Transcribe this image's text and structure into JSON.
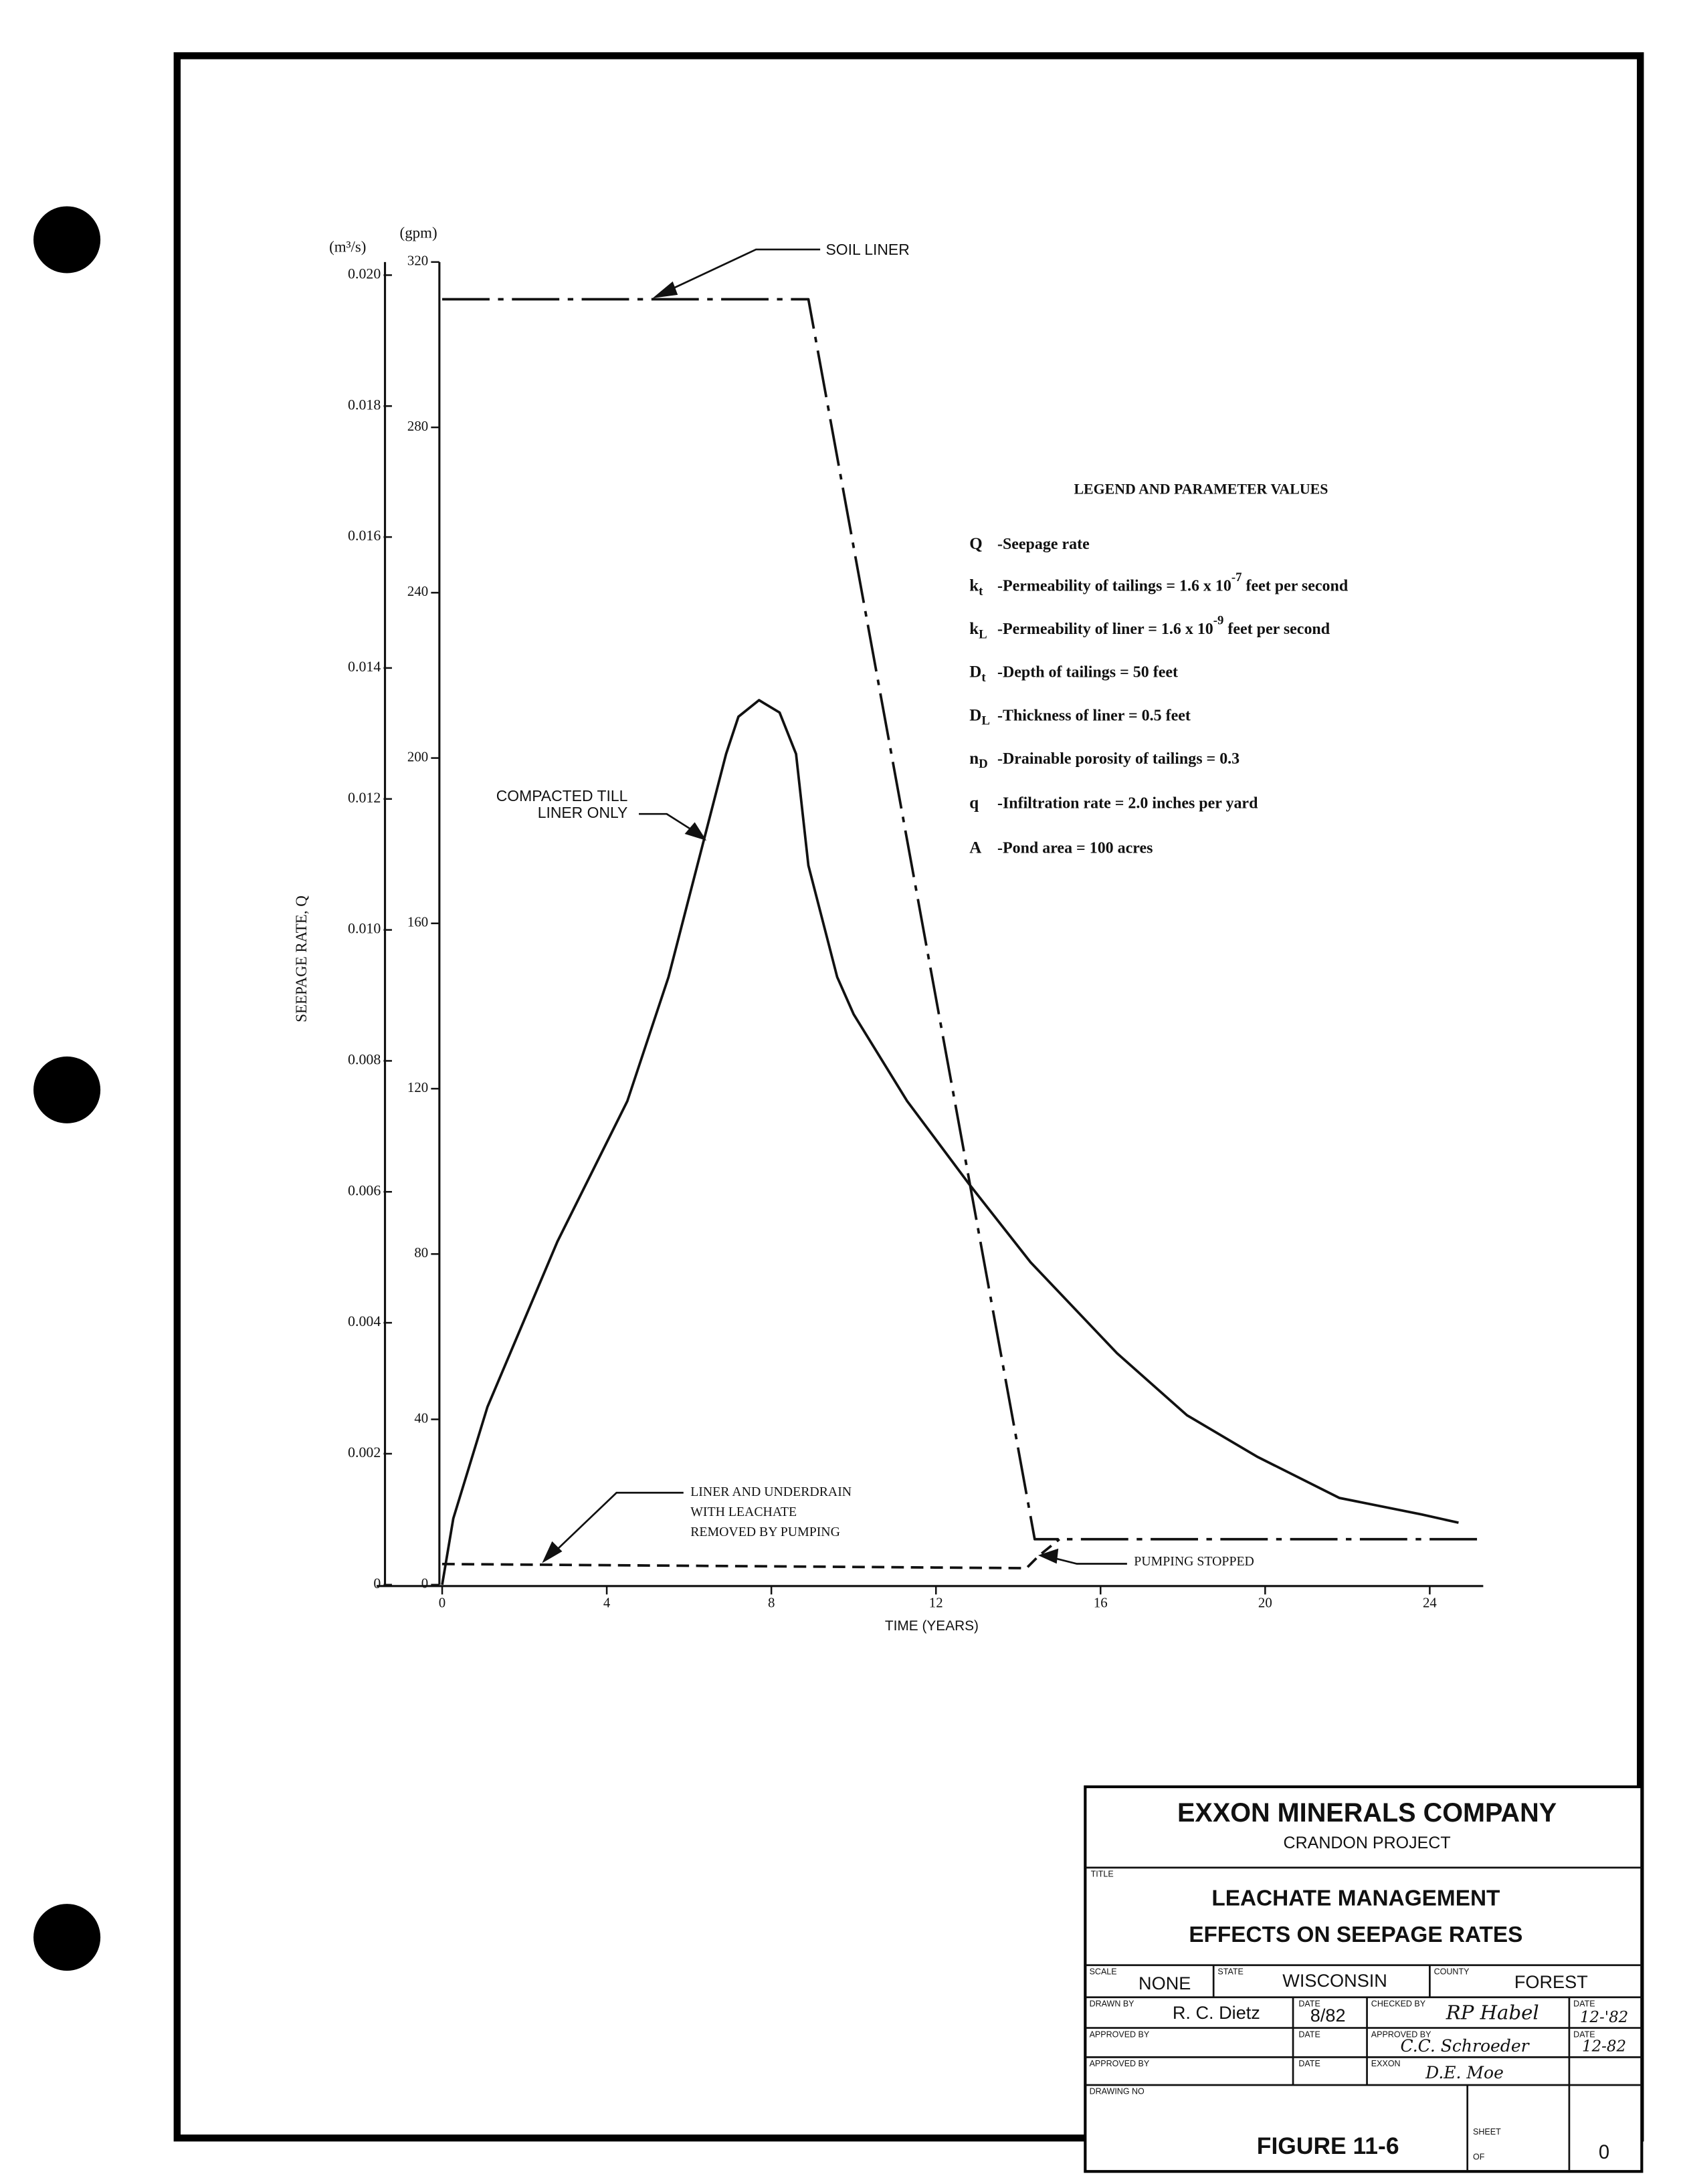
{
  "chart_data": {
    "type": "line",
    "x_label": "TIME (YEARS)",
    "y_label": "SEEPAGE RATE, Q",
    "y_unit": "(gpm)",
    "y2_unit": "(m³/s)",
    "xlim": [
      0,
      25.3
    ],
    "xticks": [
      0,
      4,
      8,
      12,
      16,
      20,
      24
    ],
    "ylim": [
      0,
      320
    ],
    "yticks": [
      0,
      40,
      80,
      120,
      160,
      200,
      240,
      280,
      320
    ],
    "y2lim": [
      0,
      0.0202
    ],
    "y2ticks": [
      0,
      {
        "value": 0.002,
        "label": "0.002"
      },
      {
        "value": 0.004,
        "label": "0.004"
      },
      {
        "value": 0.006,
        "label": "0.006"
      },
      {
        "value": 0.008,
        "label": "0.008"
      },
      {
        "value": 0.01,
        "label": "0.010"
      },
      {
        "value": 0.012,
        "label": "0.012"
      },
      {
        "value": 0.014,
        "label": "0.014"
      },
      {
        "value": 0.016,
        "label": "0.016"
      },
      {
        "value": 0.018,
        "label": "0.018"
      },
      {
        "value": 0.02,
        "label": "0.020"
      }
    ],
    "grid": false,
    "series": [
      {
        "color": "#111111",
        "line_style": "dash-dot",
        "x": [
          0,
          8.9,
          14.4,
          25.3
        ],
        "values": [
          311,
          311,
          11,
          11
        ]
      },
      {
        "color": "#111111",
        "line_style": "solid",
        "x": [
          0,
          0.27,
          1.1,
          2.8,
          4.5,
          5.5,
          6.2,
          6.9,
          7.2,
          7.7,
          8.2,
          8.6,
          8.9,
          9.6,
          10,
          11.3,
          12.8,
          14.3,
          16.4,
          18.1,
          19.8,
          21.8,
          23.8,
          24.7
        ],
        "values": [
          0,
          16,
          43,
          83,
          117,
          147,
          174,
          201,
          210,
          214,
          211,
          201,
          174,
          147,
          138,
          117,
          97,
          78,
          56,
          41,
          31,
          21,
          17,
          15
        ]
      },
      {
        "color": "#111111",
        "line_style": "dashed",
        "x": [
          0,
          14.2,
          14.5,
          15.0
        ],
        "values": [
          5,
          4,
          7,
          11
        ]
      }
    ],
    "annotations": [
      {
        "lines": [
          "SOIL LINER"
        ]
      },
      {
        "lines": [
          "COMPACTED TILL",
          "LINER ONLY"
        ]
      },
      {
        "lines": [
          "LINER AND UNDERDRAIN",
          "WITH LEACHATE",
          "REMOVED BY PUMPING"
        ]
      },
      {
        "lines": [
          "PUMPING STOPPED"
        ]
      }
    ]
  },
  "parameter_legend": {
    "title": "LEGEND AND PARAMETER VALUES",
    "items": [
      {
        "symbol": "Q",
        "text": "-Seepage rate"
      },
      {
        "symbol": "k",
        "sub": "t",
        "text": "-Permeability of tailings = 1.6 x 10",
        "sup": "-7",
        "tail": " feet per second"
      },
      {
        "symbol": "k",
        "sub": "L",
        "text": "-Permeability of liner = 1.6 x 10",
        "sup": "-9",
        "tail": " feet per second"
      },
      {
        "symbol": "D",
        "sub": "t",
        "text": "-Depth of tailings = 50 feet"
      },
      {
        "symbol": "D",
        "sub": "L",
        "text": "-Thickness of liner = 0.5 feet"
      },
      {
        "symbol": "n",
        "sub": "D",
        "text": "-Drainable porosity of tailings = 0.3"
      },
      {
        "symbol": "q",
        "text": "-Infiltration rate = 2.0 inches per yard"
      },
      {
        "symbol": "A",
        "text": "-Pond area = 100 acres"
      }
    ]
  },
  "title_block": {
    "company": "EXXON MINERALS COMPANY",
    "project": "CRANDON PROJECT",
    "title_label": "TITLE",
    "title_lines": [
      "LEACHATE MANAGEMENT",
      "EFFECTS ON SEEPAGE RATES"
    ],
    "scale_label": "SCALE",
    "scale": "NONE",
    "state_label": "STATE",
    "state": "WISCONSIN",
    "county_label": "COUNTY",
    "county": "FOREST",
    "drawn_by_label": "DRAWN BY",
    "drawn_by": "R. C. Dietz",
    "date_label": "DATE",
    "drawn_date": "8/82",
    "checked_by_label": "CHECKED BY",
    "checked_by": "RP Habel",
    "checked_date": "12-'82",
    "approved_by_label": "APPROVED BY",
    "approved_by": "C.C. Schroeder",
    "approved_date": "12-82",
    "exxon_label": "EXXON",
    "exxon_signature": "D.E. Moe",
    "drawing_no_label": "DRAWING NO",
    "figure": "FIGURE 11-6",
    "sheet_label": "SHEET",
    "of_label": "OF",
    "revision": "0"
  }
}
